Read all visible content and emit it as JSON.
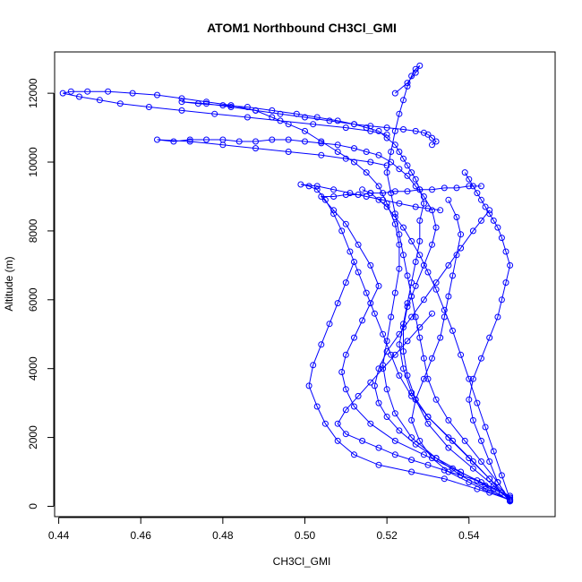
{
  "chart_data": {
    "type": "line",
    "title": "ATOM1 Northbound CH3Cl_GMI",
    "xlabel": "CH3Cl_GMI",
    "ylabel": "Altitude (m)",
    "xlim": [
      0.439,
      0.561
    ],
    "ylim": [
      -300,
      13200
    ],
    "x_ticks": [
      "0.44",
      "0.46",
      "0.48",
      "0.50",
      "0.52",
      "0.54"
    ],
    "y_ticks": [
      "0",
      "2000",
      "4000",
      "6000",
      "8000",
      "10000",
      "12000"
    ],
    "grid": false,
    "legend": "none",
    "series_color": "#0000ff",
    "series": [
      {
        "x": [
          0.55,
          0.548,
          0.545,
          0.541,
          0.536,
          0.53,
          0.526,
          0.524,
          0.523,
          0.524,
          0.525,
          0.526,
          0.527,
          0.528,
          0.528,
          0.529,
          0.528,
          0.527,
          0.526,
          0.525,
          0.524,
          0.523,
          0.522,
          0.52,
          0.518,
          0.515,
          0.512,
          0.508,
          0.503,
          0.498,
          0.492,
          0.486,
          0.48,
          0.474,
          0.47,
          0.476,
          0.482,
          0.488,
          0.494,
          0.5,
          0.506,
          0.512,
          0.516,
          0.52,
          0.524,
          0.527,
          0.529,
          0.53,
          0.531,
          0.532,
          0.531
        ],
        "y": [
          150,
          400,
          800,
          1300,
          1900,
          2600,
          3300,
          4000,
          4700,
          5300,
          5900,
          6500,
          7100,
          7700,
          8300,
          8800,
          9200,
          9500,
          9700,
          9900,
          10100,
          10300,
          10500,
          10700,
          10900,
          11000,
          11100,
          11200,
          11300,
          11400,
          11500,
          11600,
          11650,
          11700,
          11750,
          11700,
          11600,
          11500,
          11400,
          11300,
          11200,
          11100,
          11050,
          11000,
          10950,
          10900,
          10850,
          10800,
          10700,
          10600,
          10500
        ]
      },
      {
        "x": [
          0.55,
          0.546,
          0.541,
          0.535,
          0.53,
          0.527,
          0.525,
          0.524,
          0.524,
          0.525,
          0.527,
          0.529,
          0.531,
          0.532,
          0.531,
          0.529,
          0.527,
          0.525,
          0.523,
          0.521,
          0.518,
          0.515,
          0.512,
          0.508,
          0.504,
          0.5,
          0.496,
          0.492,
          0.488,
          0.484,
          0.48,
          0.476,
          0.472,
          0.468,
          0.464,
          0.472,
          0.48,
          0.488,
          0.496,
          0.504,
          0.51,
          0.516,
          0.52
        ],
        "y": [
          200,
          600,
          1100,
          1700,
          2400,
          3100,
          3800,
          4500,
          5200,
          5800,
          6400,
          7000,
          7600,
          8100,
          8600,
          9000,
          9300,
          9600,
          9800,
          10000,
          10200,
          10300,
          10400,
          10500,
          10550,
          10600,
          10650,
          10650,
          10600,
          10600,
          10650,
          10650,
          10650,
          10600,
          10650,
          10600,
          10500,
          10400,
          10300,
          10200,
          10100,
          10000,
          9900
        ]
      },
      {
        "x": [
          0.55,
          0.544,
          0.538,
          0.532,
          0.526,
          0.522,
          0.52,
          0.519,
          0.52,
          0.521,
          0.522,
          0.523,
          0.523,
          0.522,
          0.52,
          0.518,
          0.515,
          0.512,
          0.508,
          0.504,
          0.5,
          0.496,
          0.492,
          0.488,
          0.482,
          0.476,
          0.47,
          0.464,
          0.458,
          0.452,
          0.447,
          0.443,
          0.441,
          0.445,
          0.45,
          0.455,
          0.462,
          0.47,
          0.478,
          0.486,
          0.494,
          0.502,
          0.51,
          0.516,
          0.52
        ],
        "y": [
          180,
          500,
          900,
          1400,
          2000,
          2700,
          3400,
          4100,
          4800,
          5500,
          6200,
          6900,
          7600,
          8200,
          8800,
          9300,
          9700,
          10000,
          10300,
          10600,
          10900,
          11100,
          11300,
          11500,
          11650,
          11750,
          11850,
          11950,
          12000,
          12050,
          12050,
          12050,
          12000,
          11900,
          11800,
          11700,
          11600,
          11500,
          11400,
          11300,
          11200,
          11100,
          11000,
          10900,
          10800
        ]
      },
      {
        "x": [
          0.55,
          0.547,
          0.543,
          0.539,
          0.535,
          0.532,
          0.53,
          0.529,
          0.528,
          0.527,
          0.526,
          0.525,
          0.524,
          0.523,
          0.522,
          0.521,
          0.52,
          0.521,
          0.522,
          0.523,
          0.524,
          0.525,
          0.526,
          0.527,
          0.528,
          0.527,
          0.525,
          0.522
        ],
        "y": [
          150,
          700,
          1300,
          1900,
          2500,
          3100,
          3700,
          4300,
          4900,
          5500,
          6100,
          6700,
          7300,
          7900,
          8500,
          9100,
          9700,
          10300,
          10900,
          11400,
          11800,
          12200,
          12500,
          12700,
          12800,
          12600,
          12300,
          12000
        ]
      },
      {
        "x": [
          0.55,
          0.545,
          0.54,
          0.535,
          0.53,
          0.526,
          0.523,
          0.521,
          0.519,
          0.517,
          0.515,
          0.513,
          0.511,
          0.509,
          0.507,
          0.505,
          0.503,
          0.501,
          0.499,
          0.503,
          0.507,
          0.511,
          0.515,
          0.519,
          0.523,
          0.527,
          0.53,
          0.533
        ],
        "y": [
          250,
          800,
          1400,
          2000,
          2600,
          3200,
          3800,
          4400,
          5000,
          5600,
          6200,
          6800,
          7400,
          8000,
          8500,
          8900,
          9200,
          9300,
          9350,
          9300,
          9200,
          9100,
          9000,
          8900,
          8800,
          8700,
          8650,
          8600
        ]
      },
      {
        "x": [
          0.55,
          0.543,
          0.536,
          0.529,
          0.522,
          0.516,
          0.512,
          0.51,
          0.509,
          0.51,
          0.512,
          0.514,
          0.516,
          0.518,
          0.516,
          0.513,
          0.51,
          0.507,
          0.504,
          0.507,
          0.51,
          0.513,
          0.516,
          0.519,
          0.522,
          0.525,
          0.528,
          0.531,
          0.534,
          0.537,
          0.54,
          0.543
        ],
        "y": [
          300,
          700,
          1100,
          1500,
          1900,
          2400,
          2900,
          3400,
          3900,
          4400,
          4900,
          5400,
          5900,
          6400,
          7000,
          7600,
          8200,
          8600,
          9000,
          9000,
          9050,
          9050,
          9100,
          9100,
          9150,
          9150,
          9200,
          9200,
          9250,
          9250,
          9300,
          9300
        ]
      },
      {
        "x": [
          0.55,
          0.544,
          0.538,
          0.532,
          0.527,
          0.523,
          0.52,
          0.518,
          0.517,
          0.518,
          0.52,
          0.523,
          0.526,
          0.529,
          0.532,
          0.535,
          0.538,
          0.541,
          0.543,
          0.545
        ],
        "y": [
          150,
          600,
          1000,
          1400,
          1800,
          2200,
          2600,
          3000,
          3500,
          4000,
          4500,
          5000,
          5500,
          6000,
          6500,
          7000,
          7500,
          8000,
          8300,
          8600
        ]
      },
      {
        "x": [
          0.55,
          0.542,
          0.534,
          0.526,
          0.518,
          0.512,
          0.508,
          0.505,
          0.503,
          0.501,
          0.502,
          0.504,
          0.506,
          0.508,
          0.51,
          0.512
        ],
        "y": [
          200,
          500,
          800,
          1000,
          1200,
          1500,
          1900,
          2400,
          2900,
          3500,
          4100,
          4700,
          5300,
          5900,
          6500,
          7100
        ]
      },
      {
        "x": [
          0.55,
          0.547,
          0.545,
          0.543,
          0.541,
          0.54,
          0.541,
          0.543,
          0.545,
          0.547,
          0.548,
          0.549,
          0.55,
          0.549,
          0.548,
          0.547,
          0.546,
          0.545,
          0.544,
          0.543,
          0.542,
          0.541,
          0.54,
          0.539
        ],
        "y": [
          150,
          700,
          1300,
          1900,
          2500,
          3100,
          3700,
          4300,
          4900,
          5500,
          6000,
          6500,
          7000,
          7400,
          7800,
          8100,
          8300,
          8500,
          8700,
          8900,
          9100,
          9300,
          9500,
          9700
        ]
      },
      {
        "x": [
          0.55,
          0.546,
          0.542,
          0.538,
          0.534,
          0.53,
          0.526,
          0.522,
          0.518,
          0.514,
          0.51,
          0.508,
          0.51,
          0.513,
          0.516,
          0.519,
          0.522,
          0.525,
          0.528,
          0.531
        ],
        "y": [
          250,
          500,
          750,
          900,
          1050,
          1200,
          1350,
          1500,
          1700,
          1900,
          2100,
          2400,
          2800,
          3200,
          3600,
          4000,
          4400,
          4800,
          5200,
          5600
        ]
      },
      {
        "x": [
          0.55,
          0.548,
          0.546,
          0.544,
          0.542,
          0.54,
          0.538,
          0.536,
          0.534,
          0.532,
          0.53,
          0.528,
          0.526,
          0.524,
          0.522,
          0.52,
          0.518,
          0.516,
          0.514
        ],
        "y": [
          200,
          900,
          1600,
          2300,
          3000,
          3700,
          4400,
          5100,
          5700,
          6300,
          6800,
          7300,
          7700,
          8100,
          8400,
          8700,
          8900,
          9100,
          9200
        ]
      },
      {
        "x": [
          0.55,
          0.545,
          0.54,
          0.535,
          0.531,
          0.528,
          0.526,
          0.527,
          0.529,
          0.531,
          0.533,
          0.534,
          0.535,
          0.536,
          0.537,
          0.538,
          0.537,
          0.535
        ],
        "y": [
          180,
          400,
          700,
          1000,
          1400,
          1900,
          2500,
          3100,
          3700,
          4300,
          4900,
          5500,
          6100,
          6700,
          7300,
          7900,
          8400,
          8900
        ]
      }
    ]
  }
}
